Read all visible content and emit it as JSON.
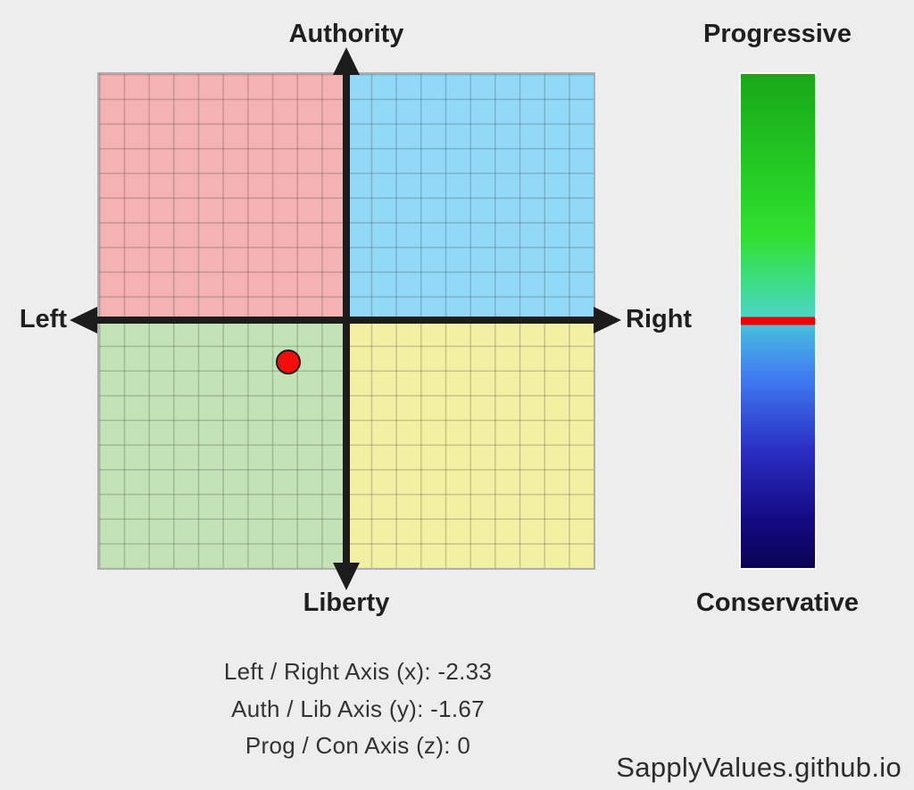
{
  "page": {
    "background_color": "#ededed"
  },
  "compass": {
    "labels": {
      "authority": "Authority",
      "liberty": "Liberty",
      "left": "Left",
      "right": "Right"
    },
    "quadrants": {
      "auth_left_color": "#f4b2b2",
      "auth_right_color": "#92d9f8",
      "lib_left_color": "#c3e2b6",
      "lib_right_color": "#f4f0a3"
    },
    "point_color": "#f20d0a",
    "axis_color": "#1c1c1c"
  },
  "zbar": {
    "top_label": "Progressive",
    "bottom_label": "Conservative",
    "gradient": [
      "#18a818 0%",
      "#26cf26 22%",
      "#31e031 33%",
      "#3edd8d 43%",
      "#4bd4c3 49%",
      "#48b7e0 52%",
      "#3f7ef2 61%",
      "#2a2fc4 76%",
      "#140a85 90%",
      "#0a0453 100%"
    ],
    "marker_color": "#ee0404"
  },
  "stats": {
    "x_line": "Left / Right Axis (x): -2.33",
    "y_line": "Auth / Lib Axis (y): -1.67",
    "z_line": "Prog / Con Axis (z): 0"
  },
  "watermark": "SapplyValues.github.io",
  "chart_data": {
    "type": "scatter",
    "title": "SapplyValues three-axis political compass result",
    "x_axis": {
      "label_left": "Left",
      "label_right": "Right",
      "range": [
        -10,
        10
      ]
    },
    "y_axis": {
      "label_top": "Authority",
      "label_bottom": "Liberty",
      "range": [
        -10,
        10
      ]
    },
    "z_axis": {
      "label_top": "Progressive",
      "label_bottom": "Conservative",
      "range": [
        -10,
        10
      ]
    },
    "grid": true,
    "grid_step": 1,
    "points": [
      {
        "x": -2.33,
        "y": -1.67,
        "z": 0
      }
    ],
    "quadrant_legend": [
      {
        "position": "top-left",
        "meaning": "Authoritarian Left",
        "color": "#f4b2b2"
      },
      {
        "position": "top-right",
        "meaning": "Authoritarian Right",
        "color": "#92d9f8"
      },
      {
        "position": "bottom-left",
        "meaning": "Libertarian Left",
        "color": "#c3e2b6"
      },
      {
        "position": "bottom-right",
        "meaning": "Libertarian Right",
        "color": "#f4f0a3"
      }
    ]
  }
}
